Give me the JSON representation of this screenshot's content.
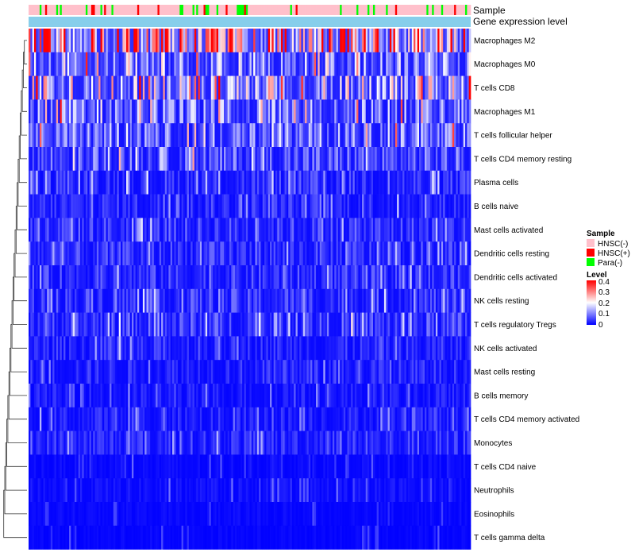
{
  "chart_data": {
    "type": "heatmap",
    "title": "",
    "annotation_tracks": [
      "Sample",
      "Gene expression level"
    ],
    "rows": [
      {
        "label": "Macrophages M2",
        "mean": 0.24
      },
      {
        "label": "Macrophages M0",
        "mean": 0.12
      },
      {
        "label": "T cells CD8",
        "mean": 0.16
      },
      {
        "label": "Macrophages M1",
        "mean": 0.1
      },
      {
        "label": "T cells follicular helper",
        "mean": 0.095
      },
      {
        "label": "T cells CD4 memory resting",
        "mean": 0.075
      },
      {
        "label": "Plasma cells",
        "mean": 0.045
      },
      {
        "label": "B cells naive",
        "mean": 0.04
      },
      {
        "label": "Mast cells activated",
        "mean": 0.05
      },
      {
        "label": "Dendritic cells resting",
        "mean": 0.045
      },
      {
        "label": "Dendritic cells activated",
        "mean": 0.045
      },
      {
        "label": "NK cells resting",
        "mean": 0.05
      },
      {
        "label": "T cells regulatory  Tregs",
        "mean": 0.055
      },
      {
        "label": "NK cells activated",
        "mean": 0.035
      },
      {
        "label": "Mast cells resting",
        "mean": 0.035
      },
      {
        "label": "B cells memory",
        "mean": 0.025
      },
      {
        "label": "T cells CD4 memory activated",
        "mean": 0.03
      },
      {
        "label": "Monocytes",
        "mean": 0.04
      },
      {
        "label": "T cells CD4 naive",
        "mean": 0.01
      },
      {
        "label": "Neutrophils",
        "mean": 0.015
      },
      {
        "label": "Eosinophils",
        "mean": 0.008
      },
      {
        "label": "T cells gamma delta",
        "mean": 0.006
      }
    ],
    "n_samples": 240,
    "sample_groups": [
      {
        "name": "HNSC(-)",
        "color": "#FFC0CB",
        "count": 200
      },
      {
        "name": "HNSC(+)",
        "color": "#FF0000",
        "count": 12
      },
      {
        "name": "Para(-)",
        "color": "#00FF00",
        "count": 28
      }
    ],
    "gene_expression_color": "#87CEEB",
    "legend": {
      "sample_title": "Sample",
      "level_title": "Level",
      "level_ticks": [
        "0.4",
        "0.3",
        "0.2",
        "0.1",
        "0"
      ],
      "level_range": [
        0,
        0.4
      ],
      "color_low": "#0000FF",
      "color_mid": "#FFFFFF",
      "color_high": "#FF0000",
      "position": "right"
    }
  }
}
